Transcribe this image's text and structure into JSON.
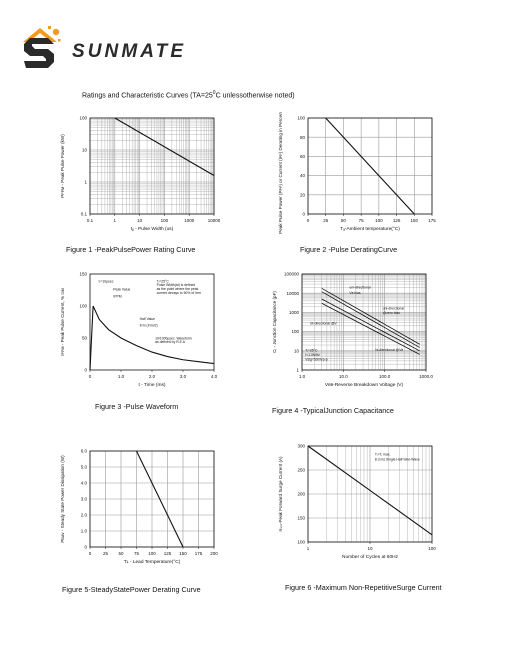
{
  "brand": {
    "name": "SUNMATE"
  },
  "heading": {
    "prefix": "Ratings and Characteristic Curves (TA=25",
    "sup": "0",
    "suffix": "C unlessotherwise noted)"
  },
  "colors": {
    "ink": "#111111",
    "grid": "#9a9a9a",
    "logo_orange": "#f29b1d",
    "logo_dark": "#2a2a2a"
  },
  "chart_data": [
    {
      "id": "fig1",
      "type": "line",
      "caption": "Figure 1 -PeakPulsePower Rating Curve",
      "title": "",
      "xlabel": "tᵨ - Pulse Width (us)",
      "ylabel": "Pᴘᴘᴍ - Peak Pulse Power (kW)",
      "xscale": "log",
      "yscale": "log",
      "xlim": [
        0.1,
        10000
      ],
      "ylim": [
        0.1,
        100
      ],
      "xticks": [
        0.1,
        1,
        10,
        100,
        1000,
        10000
      ],
      "xtick_labels": [
        "0.1",
        "1",
        "10",
        "100",
        "1000",
        "10000"
      ],
      "yticks": [
        0.1,
        1,
        10,
        100
      ],
      "ytick_labels": [
        "0.1",
        "1",
        "10",
        "100"
      ],
      "grid": true,
      "series": [
        {
          "x": [
            1,
            10000
          ],
          "y": [
            100,
            1.6
          ]
        }
      ],
      "annotations": []
    },
    {
      "id": "fig2",
      "type": "line",
      "caption": "Figure 2 -Pulse DeratingCurve",
      "title": "",
      "xlabel": "Tₐ-Ambient temperature(°C)",
      "ylabel": "Peak Pulse Power (Pᴘᴘ) or Current (Iᴘᴘ) Derating in Percentage %",
      "xscale": "linear",
      "yscale": "linear",
      "xlim": [
        0,
        175
      ],
      "ylim": [
        0,
        100
      ],
      "xticks": [
        0,
        25,
        50,
        75,
        100,
        125,
        150,
        175
      ],
      "xtick_labels": [
        "0",
        "25",
        "50",
        "75",
        "100",
        "125",
        "150",
        "175"
      ],
      "yticks": [
        0,
        20,
        40,
        60,
        80,
        100
      ],
      "ytick_labels": [
        "0",
        "20",
        "40",
        "60",
        "80",
        "100"
      ],
      "grid": true,
      "series": [
        {
          "x": [
            25,
            150
          ],
          "y": [
            100,
            0
          ]
        }
      ],
      "annotations": []
    },
    {
      "id": "fig3",
      "type": "line",
      "caption": "Figure 3 -Pulse Waveform",
      "title": "",
      "xlabel": "t - Time (ms)",
      "ylabel": "Iᴘᴘᴍ - Peak Pulse Current, % Iᴊᴍ",
      "xscale": "linear",
      "yscale": "linear",
      "xlim": [
        0,
        4.0
      ],
      "ylim": [
        0,
        150
      ],
      "xticks": [
        0,
        1.0,
        2.0,
        3.0,
        4.0
      ],
      "xtick_labels": [
        "0",
        "1.0",
        "2.0",
        "3.0",
        "4.0"
      ],
      "yticks": [
        0,
        50,
        100,
        150
      ],
      "ytick_labels": [
        "0",
        "50",
        "100",
        "150"
      ],
      "grid": false,
      "series": [
        {
          "x": [
            0,
            0.1,
            0.3,
            0.6,
            1.0,
            1.5,
            2.0,
            2.5,
            3.0,
            3.5,
            4.0
          ],
          "y": [
            0,
            100,
            79,
            63,
            50,
            38,
            28,
            21,
            16,
            13,
            10
          ]
        }
      ],
      "annotations": [
        {
          "text": "tᵣ=10μsec",
          "x": 0.28,
          "y": 137
        },
        {
          "text": "Peak Value",
          "x": 0.75,
          "y": 124
        },
        {
          "text": "IPPM",
          "x": 0.75,
          "y": 113
        },
        {
          "text": "Half Value",
          "x": 1.6,
          "y": 78
        },
        {
          "text": "Irrm (Irrm/2)",
          "x": 1.6,
          "y": 68
        },
        {
          "text": "Tⱼ=25°C",
          "x": 2.15,
          "y": 137
        },
        {
          "text": "Pulse Width(td) is defined",
          "x": 2.15,
          "y": 131
        },
        {
          "text": "as the point where the peak",
          "x": 2.15,
          "y": 125
        },
        {
          "text": "current decays to 50% of Irrm",
          "x": 2.15,
          "y": 119
        },
        {
          "text": "10/1000μsec. Waveform",
          "x": 2.1,
          "y": 48
        },
        {
          "text": "as defined by R.E.A",
          "x": 2.1,
          "y": 42
        }
      ]
    },
    {
      "id": "fig4",
      "type": "line",
      "caption": "Figure 4 -TypicalJunction Capacitance",
      "title": "",
      "xlabel": "Vʙʀ-Reverse Breakdown Voltage (V)",
      "ylabel": "Cⱼ - Junction Capacitance (pF)",
      "xscale": "log",
      "yscale": "log",
      "xlim": [
        1.0,
        1000
      ],
      "ylim": [
        1,
        100000
      ],
      "xticks": [
        1,
        10,
        100,
        1000
      ],
      "xtick_labels": [
        "1.0",
        "10.0",
        "100.0",
        "1000.0"
      ],
      "yticks": [
        1,
        10,
        100,
        1000,
        10000,
        100000
      ],
      "ytick_labels": [
        "1",
        "10",
        "100",
        "1000",
        "10000",
        "100000"
      ],
      "grid": true,
      "series": [
        {
          "x": [
            3,
            700
          ],
          "y": [
            18000,
            22
          ]
        },
        {
          "x": [
            3,
            700
          ],
          "y": [
            12000,
            15
          ]
        },
        {
          "x": [
            3,
            700
          ],
          "y": [
            5000,
            10
          ]
        },
        {
          "x": [
            3,
            700
          ],
          "y": [
            3000,
            6.5
          ]
        }
      ],
      "annotations": [
        {
          "text": "uni-directional",
          "x": 14,
          "y": 18000
        },
        {
          "text": "Vʙ bias",
          "x": 14,
          "y": 9000
        },
        {
          "text": "uni-directional",
          "x": 90,
          "y": 1400
        },
        {
          "text": "@zero bias",
          "x": 90,
          "y": 850
        },
        {
          "text": "Bi-directional @V",
          "x": 1.6,
          "y": 240
        },
        {
          "text": "Tⱼ=25°C",
          "x": 1.2,
          "y": 9
        },
        {
          "text": "f=1.0MHz",
          "x": 1.2,
          "y": 5.5
        },
        {
          "text": "Vsig=50mVp-p",
          "x": 1.2,
          "y": 3.2
        },
        {
          "text": "bi-directional @Vʙ",
          "x": 60,
          "y": 10
        }
      ]
    },
    {
      "id": "fig5",
      "type": "line",
      "caption": "Figure 5-SteadyStatePower Derating Curve",
      "title": "",
      "xlabel": "Tʟ - Lead Temperature(°C)",
      "ylabel": "Pᴅᴀᴠ - Steady State Power Dissipation (W)",
      "xscale": "linear",
      "yscale": "linear",
      "xlim": [
        0,
        200
      ],
      "ylim": [
        0,
        6.0
      ],
      "xticks": [
        0,
        25,
        50,
        75,
        100,
        125,
        150,
        175,
        200
      ],
      "xtick_labels": [
        "0",
        "25",
        "50",
        "75",
        "100",
        "125",
        "150",
        "175",
        "200"
      ],
      "yticks": [
        0,
        1.0,
        2.0,
        3.0,
        4.0,
        5.0,
        6.0
      ],
      "ytick_labels": [
        "0",
        "1.0",
        "2.0",
        "3.0",
        "4.0",
        "5.0",
        "6.0"
      ],
      "grid": true,
      "series": [
        {
          "x": [
            75,
            150
          ],
          "y": [
            6.0,
            0
          ]
        }
      ],
      "annotations": []
    },
    {
      "id": "fig6",
      "type": "line",
      "caption": "Figure 6 -Maximum Non-RepetitiveSurge Current",
      "title": "",
      "xlabel": "Number of Cycles at 60Hz",
      "ylabel": "Iғₛₘ-Peak Forward Surge Current (A)",
      "xscale": "log",
      "yscale": "linear",
      "xlim": [
        1,
        100
      ],
      "ylim": [
        100,
        300
      ],
      "xticks": [
        1,
        10,
        100
      ],
      "xtick_labels": [
        "1",
        "10",
        "100"
      ],
      "yticks": [
        100,
        150,
        200,
        250,
        300
      ],
      "ytick_labels": [
        "100",
        "150",
        "200",
        "250",
        "300"
      ],
      "grid": true,
      "series": [
        {
          "x": [
            1,
            100
          ],
          "y": [
            300,
            115
          ]
        }
      ],
      "annotations": [
        {
          "text": "Tⱼ=Tⱼ max.",
          "x": 12,
          "y": 280
        },
        {
          "text": "8.3 ms Single Half Sine-Wave",
          "x": 12,
          "y": 270
        }
      ]
    }
  ]
}
